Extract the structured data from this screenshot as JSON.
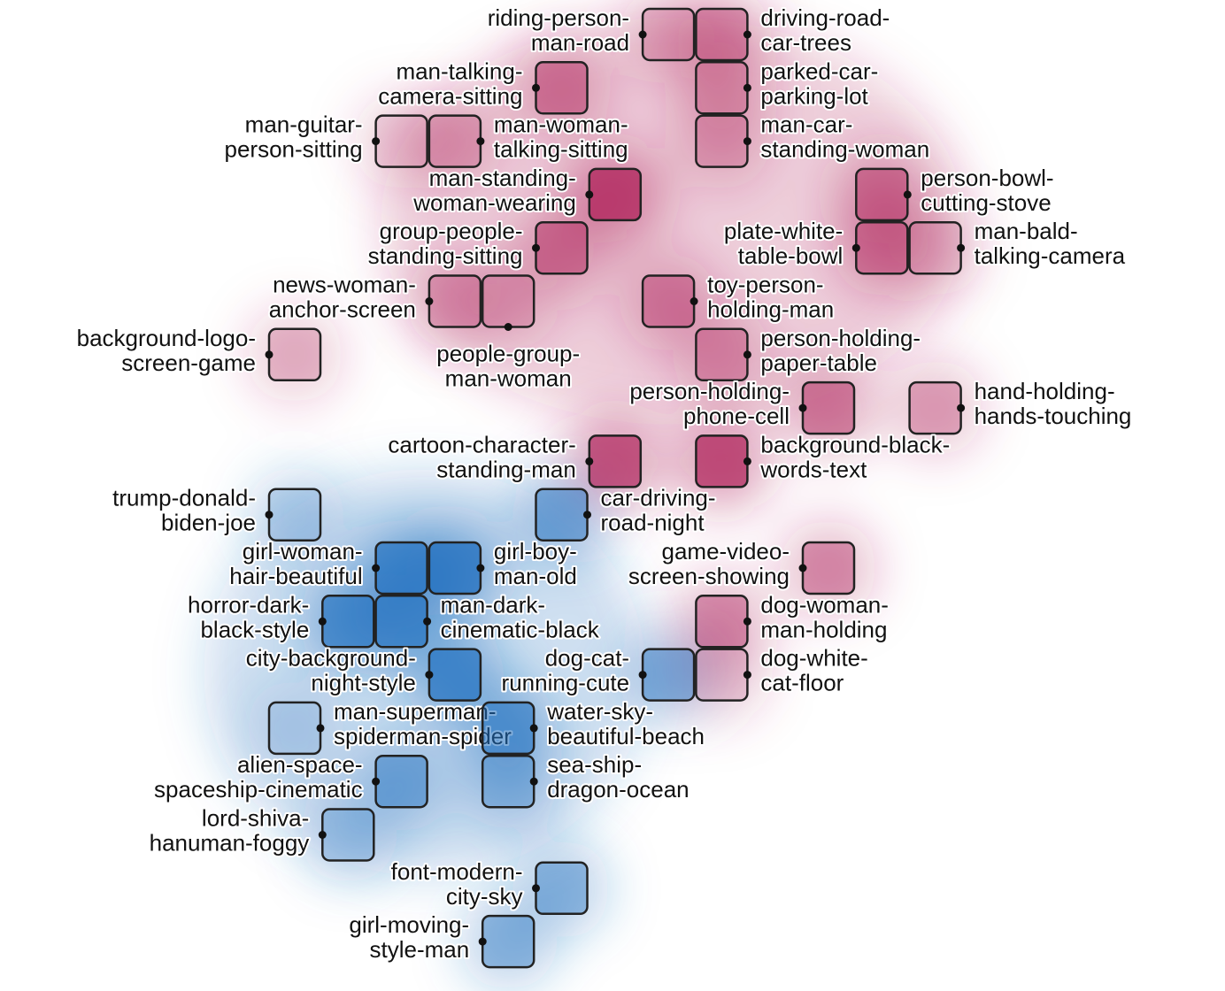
{
  "chart_data": {
    "type": "heatmap",
    "description_of_encoding": "",
    "colors": {
      "group_a": "#b0245c",
      "group_b": "#1f6fbf",
      "cell_border": "#222222"
    },
    "cells": [
      {
        "col": 7,
        "row": 0,
        "label": [
          "riding-person-",
          "man-road"
        ],
        "side": "left",
        "group": "a",
        "density": 0.15
      },
      {
        "col": 8,
        "row": 0,
        "label": [
          "driving-road-",
          "car-trees"
        ],
        "side": "right",
        "group": "a",
        "density": 0.35
      },
      {
        "col": 5,
        "row": 1,
        "label": [
          "man-talking-",
          "camera-sitting"
        ],
        "side": "left",
        "group": "a",
        "density": 0.45
      },
      {
        "col": 8,
        "row": 1,
        "label": [
          "parked-car-",
          "parking-lot"
        ],
        "side": "right",
        "group": "a",
        "density": 0.2
      },
      {
        "col": 2,
        "row": 2,
        "label": [
          "man-guitar-",
          "person-sitting"
        ],
        "side": "left",
        "group": "a",
        "density": 0.05
      },
      {
        "col": 3,
        "row": 2,
        "label": [
          "man-woman-",
          "talking-sitting"
        ],
        "side": "right",
        "group": "a",
        "density": 0.2
      },
      {
        "col": 8,
        "row": 2,
        "label": [
          "man-car-",
          "standing-woman"
        ],
        "side": "right",
        "group": "a",
        "density": 0.2
      },
      {
        "col": 6,
        "row": 3,
        "label": [
          "man-standing-",
          "woman-wearing"
        ],
        "side": "left",
        "group": "a",
        "density": 0.85
      },
      {
        "col": 11,
        "row": 3,
        "label": [
          "person-bowl-",
          "cutting-stove"
        ],
        "side": "right",
        "group": "a",
        "density": 0.5
      },
      {
        "col": 5,
        "row": 4,
        "label": [
          "group-people-",
          "standing-sitting"
        ],
        "side": "left",
        "group": "a",
        "density": 0.5
      },
      {
        "col": 11,
        "row": 4,
        "label": [
          "plate-white-",
          "table-bowl"
        ],
        "side": "left",
        "group": "a",
        "density": 0.45
      },
      {
        "col": 12,
        "row": 4,
        "label": [
          "man-bald-",
          "talking-camera"
        ],
        "side": "right",
        "group": "a",
        "density": 0.1
      },
      {
        "col": 3,
        "row": 5,
        "label": [
          "news-woman-",
          "anchor-screen"
        ],
        "side": "left",
        "group": "a",
        "density": 0.25
      },
      {
        "col": 4,
        "row": 5,
        "label": [
          "people-group-",
          "man-woman"
        ],
        "side": "bottom",
        "group": "a",
        "density": 0.15
      },
      {
        "col": 7,
        "row": 5,
        "label": [
          "toy-person-",
          "holding-man"
        ],
        "side": "right",
        "group": "a",
        "density": 0.4
      },
      {
        "col": 0,
        "row": 6,
        "label": [
          "background-logo-",
          "screen-game"
        ],
        "side": "left",
        "group": "a",
        "density": 0.2
      },
      {
        "col": 8,
        "row": 6,
        "label": [
          "person-holding-",
          "paper-table"
        ],
        "side": "right",
        "group": "a",
        "density": 0.3
      },
      {
        "col": 10,
        "row": 7,
        "label": [
          "person-holding-",
          "phone-cell"
        ],
        "side": "left",
        "group": "a",
        "density": 0.5
      },
      {
        "col": 12,
        "row": 7,
        "label": [
          "hand-holding-",
          "hands-touching"
        ],
        "side": "right",
        "group": "a",
        "density": 0.3
      },
      {
        "col": 6,
        "row": 8,
        "label": [
          "cartoon-character-",
          "standing-man"
        ],
        "side": "left",
        "group": "a",
        "density": 0.75
      },
      {
        "col": 8,
        "row": 8,
        "label": [
          "background-black-",
          "words-text"
        ],
        "side": "right",
        "group": "a",
        "density": 0.8
      },
      {
        "col": 0,
        "row": 9,
        "label": [
          "trump-donald-",
          "biden-joe"
        ],
        "side": "left",
        "group": "b",
        "density": 0.15
      },
      {
        "col": 5,
        "row": 9,
        "label": [
          "car-driving-",
          "road-night"
        ],
        "side": "right",
        "group": "b",
        "density": 0.5
      },
      {
        "col": 2,
        "row": 10,
        "label": [
          "girl-woman-",
          "hair-beautiful"
        ],
        "side": "left",
        "group": "b",
        "density": 0.75
      },
      {
        "col": 3,
        "row": 10,
        "label": [
          "girl-boy-",
          "man-old"
        ],
        "side": "right",
        "group": "b",
        "density": 0.85
      },
      {
        "col": 10,
        "row": 10,
        "label": [
          "game-video-",
          "screen-showing"
        ],
        "side": "left",
        "group": "a",
        "density": 0.4
      },
      {
        "col": 1,
        "row": 11,
        "label": [
          "horror-dark-",
          "black-style"
        ],
        "side": "left",
        "group": "b",
        "density": 0.7
      },
      {
        "col": 2,
        "row": 11,
        "label": [
          "man-dark-",
          "cinematic-black"
        ],
        "side": "right",
        "group": "b",
        "density": 0.7
      },
      {
        "col": 8,
        "row": 11,
        "label": [
          "dog-woman-",
          "man-holding"
        ],
        "side": "right",
        "group": "a",
        "density": 0.4
      },
      {
        "col": 3,
        "row": 12,
        "label": [
          "city-background-",
          "night-style"
        ],
        "side": "left",
        "group": "b",
        "density": 0.75
      },
      {
        "col": 7,
        "row": 12,
        "label": [
          "dog-cat-",
          "running-cute"
        ],
        "side": "left",
        "group": "b",
        "density": 0.45
      },
      {
        "col": 8,
        "row": 12,
        "label": [
          "dog-white-",
          "cat-floor"
        ],
        "side": "right",
        "group": "a",
        "density": 0.1
      },
      {
        "col": 0,
        "row": 13,
        "label": [
          "man-superman-",
          "spiderman-spider"
        ],
        "side": "right",
        "group": "b",
        "density": 0.05
      },
      {
        "col": 4,
        "row": 13,
        "label": [
          "water-sky-",
          "beautiful-beach"
        ],
        "side": "right",
        "group": "b",
        "density": 0.6
      },
      {
        "col": 2,
        "row": 14,
        "label": [
          "alien-space-",
          "spaceship-cinematic"
        ],
        "side": "left",
        "group": "b",
        "density": 0.45
      },
      {
        "col": 4,
        "row": 14,
        "label": [
          "sea-ship-",
          "dragon-ocean"
        ],
        "side": "right",
        "group": "b",
        "density": 0.3
      },
      {
        "col": 1,
        "row": 15,
        "label": [
          "lord-shiva-",
          "hanuman-foggy"
        ],
        "side": "left",
        "group": "b",
        "density": 0.2
      },
      {
        "col": 5,
        "row": 16,
        "label": [
          "font-modern-",
          "city-sky"
        ],
        "side": "left",
        "group": "b",
        "density": 0.4
      },
      {
        "col": 4,
        "row": 17,
        "label": [
          "girl-moving-",
          "style-man"
        ],
        "side": "left",
        "group": "b",
        "density": 0.4
      }
    ]
  }
}
